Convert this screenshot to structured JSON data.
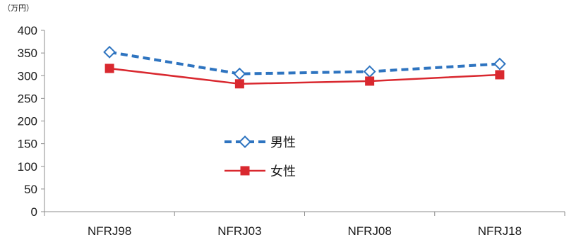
{
  "chart_data": {
    "type": "line",
    "unit_label": "（万円）",
    "categories": [
      "NFRJ98",
      "NFRJ03",
      "NFRJ08",
      "NFRJ18"
    ],
    "ylim": [
      0,
      400
    ],
    "yticks": [
      0,
      50,
      100,
      150,
      200,
      250,
      300,
      350,
      400
    ],
    "grid": false,
    "legend_position": "center-left",
    "series": [
      {
        "name": "男性",
        "values": [
          352,
          304,
          309,
          326
        ],
        "color": "#2e74c0",
        "line_style": "dashed",
        "marker": "open-diamond"
      },
      {
        "name": "女性",
        "values": [
          316,
          282,
          288,
          302
        ],
        "color": "#d9282f",
        "line_style": "solid",
        "marker": "filled-square"
      }
    ]
  }
}
